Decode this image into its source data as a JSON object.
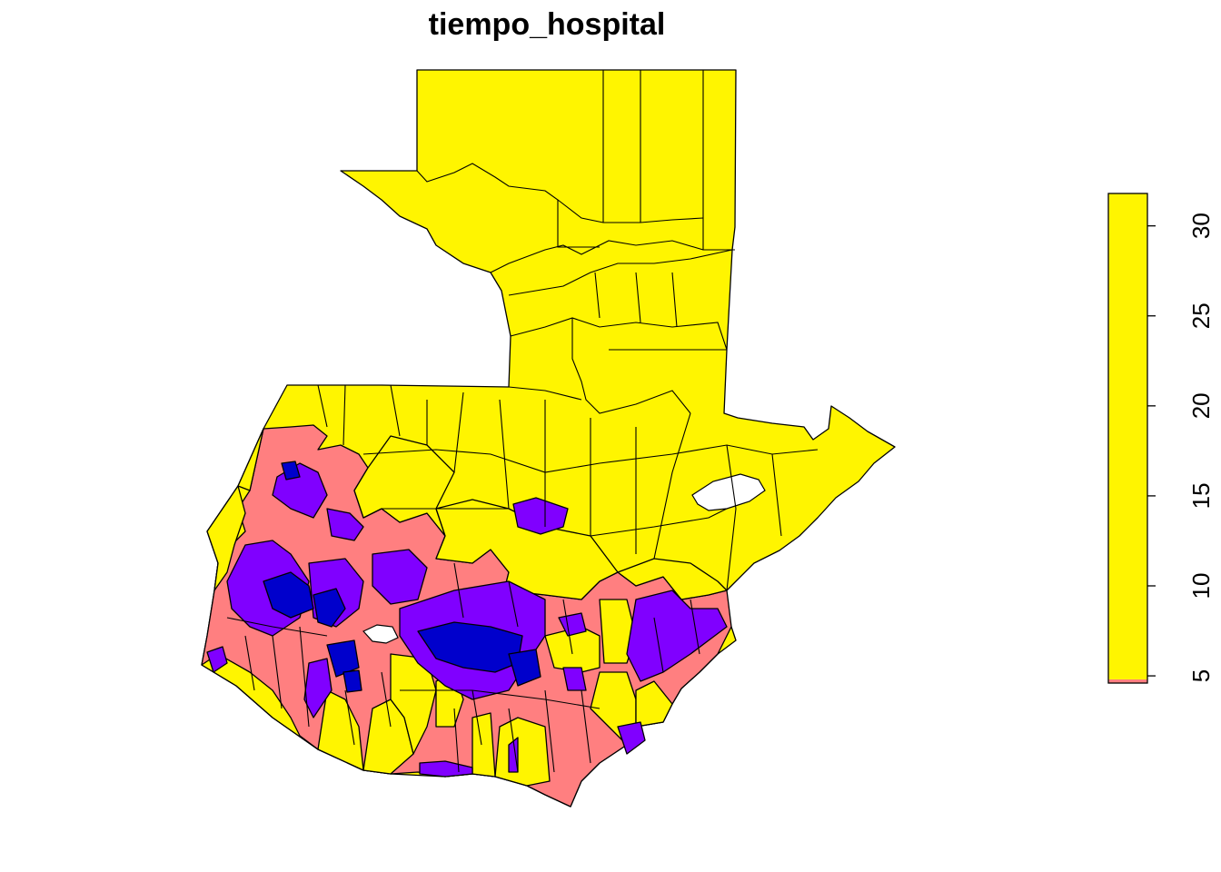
{
  "title": "tiempo_hospital",
  "legend": {
    "ticks": [
      "5",
      "10",
      "15",
      "20",
      "25",
      "30"
    ],
    "tick_values": [
      5,
      10,
      15,
      20,
      25,
      30
    ],
    "range": [
      4.6,
      31.8
    ],
    "placement": "right",
    "colors": {
      "high": "#FFF500",
      "low_strip": "#FF7F7F"
    }
  },
  "class_colors": {
    "yellow": "#FFF500",
    "pink": "#FF7F80",
    "violet": "#8000FF",
    "blue": "#0000CC",
    "lake": "#FFFFFF",
    "border": "#000000"
  }
}
